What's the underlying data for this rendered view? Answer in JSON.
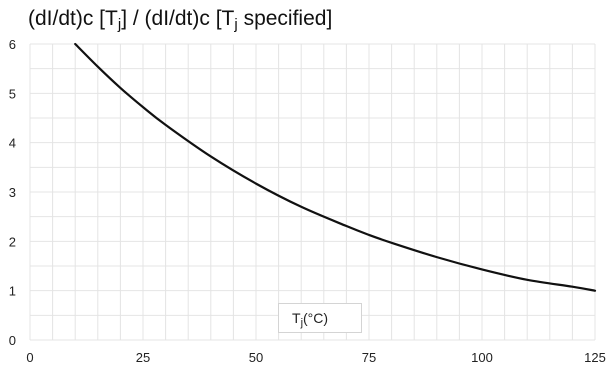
{
  "chart_data": {
    "type": "line",
    "title": {
      "p1": "(dI/dt)c [T",
      "s1": "j",
      "p2": "] / (dI/dt)c [T",
      "s2": "j",
      "p3": " specified]"
    },
    "xlabel": {
      "main": "T",
      "sub": "j",
      "rest": "(°C)"
    },
    "ylabel": "",
    "xlim": [
      0,
      125
    ],
    "ylim": [
      0,
      6
    ],
    "x_ticks": [
      0,
      25,
      50,
      75,
      100,
      125
    ],
    "y_ticks": [
      0,
      1,
      2,
      3,
      4,
      5,
      6
    ],
    "grid": true,
    "series": [
      {
        "color": "#111111",
        "x": [
          10,
          15,
          20,
          25,
          30,
          40,
          50,
          60,
          70,
          75,
          80,
          90,
          100,
          110,
          120,
          125
        ],
        "y": [
          6.0,
          5.54,
          5.11,
          4.72,
          4.36,
          3.72,
          3.17,
          2.7,
          2.31,
          2.13,
          1.97,
          1.68,
          1.43,
          1.22,
          1.08,
          1.0
        ]
      }
    ]
  }
}
